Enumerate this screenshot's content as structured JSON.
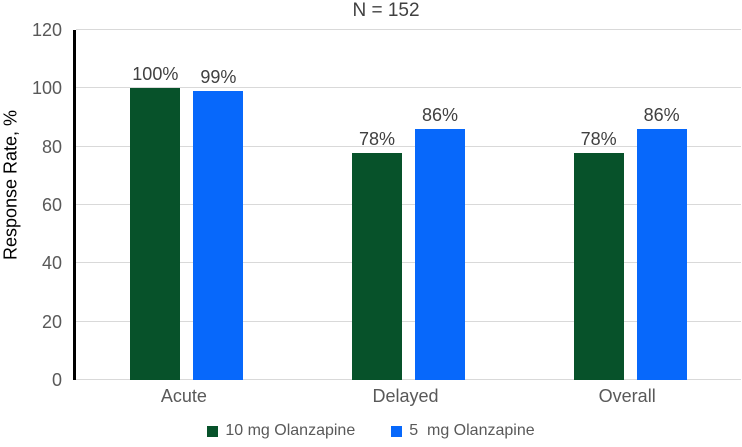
{
  "chart_data": {
    "type": "bar",
    "title": "N = 152",
    "xlabel": "",
    "ylabel": "Response Rate, %",
    "ylim": [
      0,
      120
    ],
    "yticks": [
      0,
      20,
      40,
      60,
      80,
      100,
      120
    ],
    "grid": true,
    "legend_position": "bottom",
    "categories": [
      "Acute",
      "Delayed",
      "Overall"
    ],
    "series": [
      {
        "name": "10 mg Olanzapine",
        "color": "#07522a",
        "values": [
          100,
          78,
          78
        ],
        "labels": [
          "100%",
          "78%",
          "78%"
        ]
      },
      {
        "name": "5  mg Olanzapine",
        "color": "#0768fb",
        "values": [
          99,
          86,
          86
        ],
        "labels": [
          "99%",
          "86%",
          "86%"
        ]
      }
    ]
  },
  "colors": {
    "background": "#ffffff",
    "title_text": "#404040",
    "tick_text": "#595959",
    "category_text": "#595959",
    "value_label_text": "#404040",
    "legend_text": "#595959",
    "gridline": "#d9d9d9",
    "axis_line": "#000000",
    "y_axis_title_text": "#000000"
  }
}
